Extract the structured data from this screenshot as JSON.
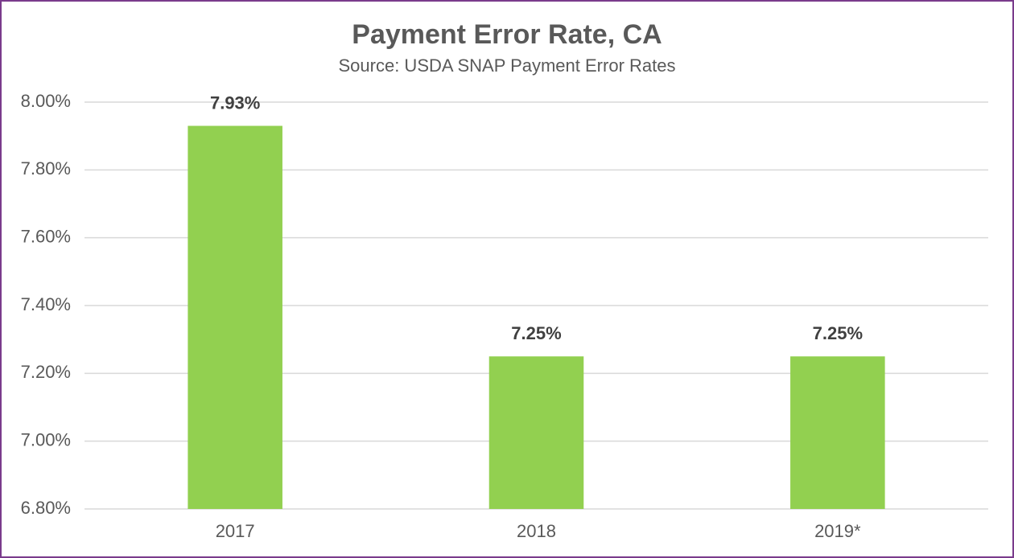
{
  "chart_data": {
    "type": "bar",
    "title": "Payment Error Rate, CA",
    "subtitle": "Source: USDA SNAP Payment Error Rates",
    "categories": [
      "2017",
      "2018",
      "2019*"
    ],
    "values": [
      7.93,
      7.25,
      7.25
    ],
    "value_labels": [
      "7.93%",
      "7.25%",
      "7.25%"
    ],
    "color": "#92d050",
    "ylim": [
      6.8,
      8.0
    ],
    "yticks": [
      {
        "value": 6.8,
        "label": "6.80%"
      },
      {
        "value": 7.0,
        "label": "7.00%"
      },
      {
        "value": 7.2,
        "label": "7.20%"
      },
      {
        "value": 7.4,
        "label": "7.40%"
      },
      {
        "value": 7.6,
        "label": "7.60%"
      },
      {
        "value": 7.8,
        "label": "7.80%"
      },
      {
        "value": 8.0,
        "label": "8.00%"
      }
    ],
    "grid": true
  }
}
